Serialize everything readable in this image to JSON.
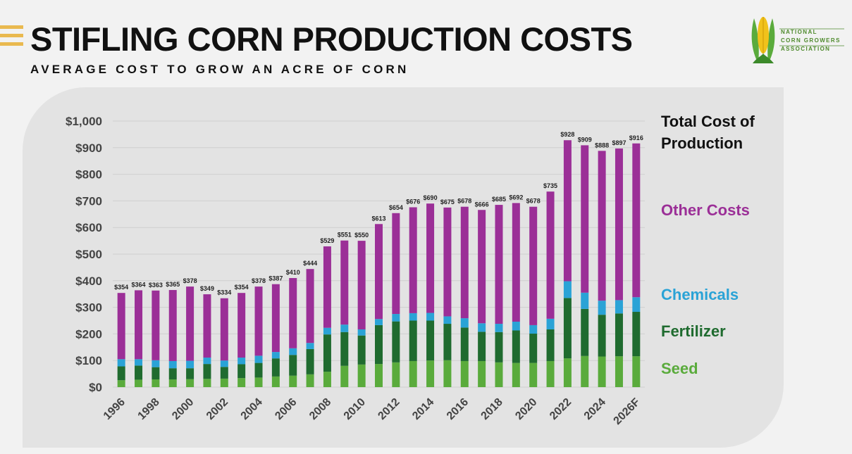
{
  "header": {
    "title": "STIFLING CORN PRODUCTION COSTS",
    "subtitle": "AVERAGE COST TO GROW AN ACRE OF CORN"
  },
  "logo": {
    "line1": "NATIONAL",
    "line2": "CORN GROWERS",
    "line3": "ASSOCIATION"
  },
  "legend": {
    "total": "Total Cost of Production",
    "other": "Other Costs",
    "chemicals": "Chemicals",
    "fertilizer": "Fertilizer",
    "seed": "Seed"
  },
  "colors": {
    "seed": "#5aab3c",
    "fertilizer": "#1f6b2f",
    "chemicals": "#2aa3d6",
    "other": "#9b2f97",
    "total": "#111111",
    "accent": "#e9b94f",
    "panel": "#e3e3e3"
  },
  "chart_data": {
    "type": "bar",
    "stacked": true,
    "categories": [
      "1996",
      "1997",
      "1998",
      "1999",
      "2000",
      "2001",
      "2002",
      "2003",
      "2004",
      "2005",
      "2006",
      "2007",
      "2008",
      "2009",
      "2010",
      "2011",
      "2012",
      "2013",
      "2014",
      "2015",
      "2016",
      "2017",
      "2018",
      "2019",
      "2020",
      "2021",
      "2022",
      "2023",
      "2024",
      "2025",
      "2026F"
    ],
    "xtick_labels": [
      "1996",
      "",
      "1998",
      "",
      "2000",
      "",
      "2002",
      "",
      "2004",
      "",
      "2006",
      "",
      "2008",
      "",
      "2010",
      "",
      "2012",
      "",
      "2014",
      "",
      "2016",
      "",
      "2018",
      "",
      "2020",
      "",
      "2022",
      "",
      "2024",
      "",
      "2026F"
    ],
    "series": [
      {
        "name": "Seed",
        "values": [
          26,
          28,
          29,
          29,
          30,
          31,
          32,
          34,
          36,
          40,
          43,
          48,
          58,
          80,
          85,
          87,
          93,
          98,
          100,
          101,
          98,
          98,
          93,
          91,
          91,
          98,
          108,
          117,
          115,
          116,
          116
        ]
      },
      {
        "name": "Fertilizer",
        "values": [
          52,
          53,
          46,
          42,
          41,
          56,
          44,
          52,
          55,
          68,
          78,
          95,
          140,
          127,
          109,
          146,
          154,
          152,
          150,
          137,
          126,
          110,
          114,
          122,
          110,
          119,
          227,
          177,
          157,
          161,
          167
        ]
      },
      {
        "name": "Chemicals",
        "values": [
          27,
          24,
          26,
          27,
          28,
          24,
          24,
          25,
          27,
          24,
          25,
          23,
          25,
          28,
          23,
          23,
          28,
          28,
          29,
          28,
          35,
          32,
          31,
          33,
          32,
          40,
          63,
          61,
          53,
          50,
          55
        ]
      },
      {
        "name": "Other Costs",
        "values": [
          249,
          259,
          262,
          267,
          279,
          238,
          234,
          243,
          260,
          255,
          264,
          278,
          306,
          316,
          333,
          357,
          379,
          398,
          411,
          409,
          419,
          426,
          447,
          446,
          445,
          478,
          530,
          554,
          563,
          570,
          578
        ]
      }
    ],
    "totals": [
      354,
      364,
      363,
      365,
      378,
      349,
      334,
      354,
      378,
      387,
      410,
      444,
      529,
      551,
      550,
      613,
      654,
      676,
      690,
      675,
      678,
      666,
      685,
      692,
      678,
      735,
      928,
      909,
      888,
      897,
      916
    ],
    "total_labels": [
      "$354",
      "$364",
      "$363",
      "$365",
      "$378",
      "$349",
      "$334",
      "$354",
      "$378",
      "$387",
      "$410",
      "$444",
      "$529",
      "$551",
      "$550",
      "$613",
      "$654",
      "$676",
      "$690",
      "$675",
      "$678",
      "$666",
      "$685",
      "$692",
      "$678",
      "$735",
      "$928",
      "$909",
      "$888",
      "$897",
      "$916"
    ],
    "ylim": [
      0,
      1000
    ],
    "yticks": [
      0,
      100,
      200,
      300,
      400,
      500,
      600,
      700,
      800,
      900,
      1000
    ],
    "ytick_labels": [
      "$0",
      "$100",
      "$200",
      "$300",
      "$400",
      "$500",
      "$600",
      "$700",
      "$800",
      "$900",
      "$1,000"
    ],
    "title": "STIFLING CORN PRODUCTION COSTS",
    "subtitle": "AVERAGE COST TO GROW AN ACRE OF CORN",
    "xlabel": "",
    "ylabel": "",
    "grid": true
  }
}
